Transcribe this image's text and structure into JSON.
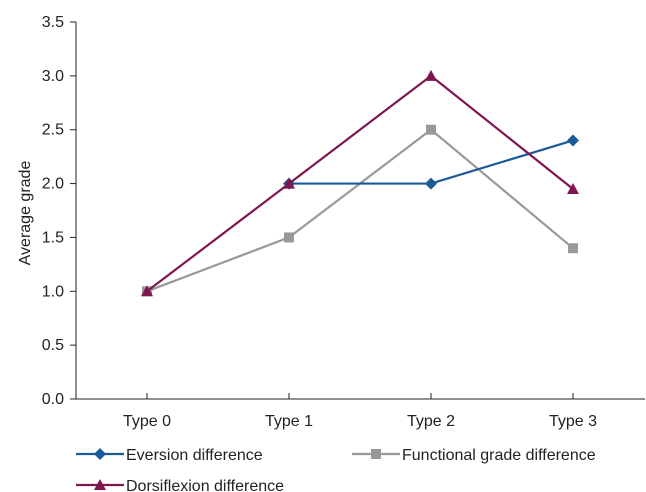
{
  "chart_data": {
    "type": "line",
    "categories": [
      "Type 0",
      "Type 1",
      "Type 2",
      "Type 3"
    ],
    "ylabel": "Average grade",
    "xlabel": "",
    "ylim": [
      0,
      3.5
    ],
    "yticks": [
      "0.0",
      "0.5",
      "1.0",
      "1.5",
      "2.0",
      "2.5",
      "3.0",
      "3.5"
    ],
    "grid": false,
    "legend_position": "bottom",
    "series": [
      {
        "name": "Eversion difference",
        "values": [
          null,
          2.0,
          2.0,
          2.4
        ],
        "color": "#1a5a96",
        "marker": "diamond"
      },
      {
        "name": "Functional grade difference",
        "values": [
          1.0,
          1.5,
          2.5,
          1.4
        ],
        "color": "#999999",
        "marker": "square"
      },
      {
        "name": "Dorsiflexion difference",
        "values": [
          1.0,
          2.0,
          3.0,
          1.95
        ],
        "color": "#7f1650",
        "marker": "triangle"
      }
    ]
  }
}
